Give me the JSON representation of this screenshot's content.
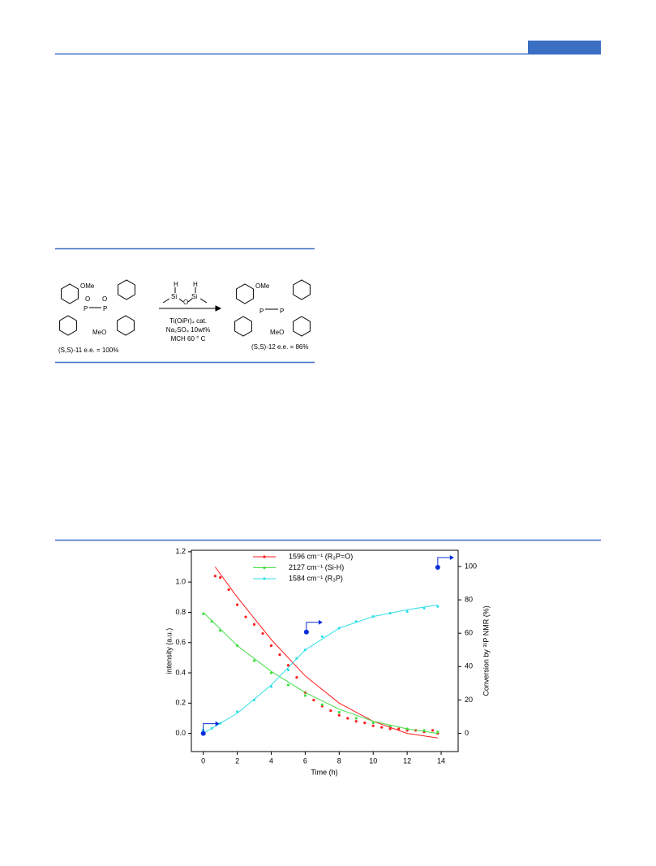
{
  "scheme": {
    "left": {
      "ome": "OMe",
      "o1": "O",
      "o2": "O",
      "p1": "P",
      "p2": "P",
      "meo": "MeO",
      "label": "(S,S)-11  e.e. = 100%"
    },
    "reagent": {
      "h1": "H",
      "h2": "H",
      "si1": "Si",
      "o": "O",
      "si2": "Si"
    },
    "conditions": [
      "Ti(OiPr)₄ cat.",
      "Na₂SO₄ 10wt%",
      "MCH 60 ° C"
    ],
    "right": {
      "ome": "OMe",
      "p1": "P",
      "p2": "P",
      "meo": "MeO",
      "label": "(S,S)-12  e.e. = 86%"
    }
  },
  "chart_data": {
    "type": "scatter",
    "x_label": "Time (h)",
    "y_label": "intensity (a.u.)",
    "y2_label": "Conversion by ³¹P NMR (%)",
    "xlim": [
      -0.7,
      15
    ],
    "xticks": [
      0,
      2,
      4,
      6,
      8,
      10,
      12,
      14
    ],
    "ylim": [
      -0.12,
      1.21
    ],
    "yticks": [
      {
        "value": 0,
        "label": "0.0"
      },
      0.2,
      0.4,
      0.6,
      0.8,
      {
        "value": 1,
        "label": "1.0"
      },
      1.2
    ],
    "y2lim": [
      -10.9,
      109.7
    ],
    "y2ticks": [
      0,
      20,
      40,
      60,
      80,
      100
    ],
    "series": [
      {
        "name": "1596 cm⁻¹ (R₃P=O)",
        "color": "#ff1a1a",
        "x": [
          0.7,
          1,
          1.5,
          2,
          2.5,
          3,
          3.5,
          4,
          4.5,
          5,
          5.5,
          6,
          6.5,
          7,
          7.5,
          8,
          8.5,
          9,
          9.5,
          10,
          10.5,
          11,
          11.5,
          12,
          12.5,
          13,
          13.5,
          13.8
        ],
        "values": [
          1.04,
          1.03,
          0.95,
          0.85,
          0.77,
          0.72,
          0.66,
          0.58,
          0.52,
          0.45,
          0.37,
          0.27,
          0.22,
          0.18,
          0.15,
          0.12,
          0.1,
          0.08,
          0.07,
          0.05,
          0.04,
          0.03,
          0.03,
          0.02,
          0.02,
          0.01,
          0.02,
          0.0
        ],
        "fit_x": [
          0.7,
          2,
          4,
          6,
          8,
          10,
          12,
          13.8
        ],
        "fit": [
          1.1,
          0.9,
          0.62,
          0.38,
          0.2,
          0.08,
          0.0,
          -0.03
        ]
      },
      {
        "name": "2127 cm⁻¹ (Si-H)",
        "color": "#44dd44",
        "x": [
          0,
          0.5,
          1,
          2,
          3,
          4,
          5,
          6,
          7,
          8,
          9,
          10,
          11,
          12,
          13,
          13.8
        ],
        "values": [
          0.79,
          0.74,
          0.68,
          0.58,
          0.48,
          0.4,
          0.32,
          0.25,
          0.19,
          0.14,
          0.1,
          0.07,
          0.05,
          0.03,
          0.02,
          0.01
        ],
        "fit_x": [
          0,
          2,
          4,
          6,
          8,
          10,
          12,
          13.8
        ],
        "fit": [
          0.8,
          0.58,
          0.41,
          0.27,
          0.16,
          0.08,
          0.03,
          0.0
        ]
      },
      {
        "name": "1584 cm⁻¹ (R₃P)",
        "color": "#33e0e8",
        "axis": "y2",
        "x": [
          0,
          0.5,
          1,
          2,
          3,
          4,
          5,
          5.5,
          6,
          7,
          8,
          9,
          10,
          11,
          12,
          13,
          13.8
        ],
        "values": [
          2,
          3,
          6,
          13,
          20,
          28,
          38,
          45,
          50,
          58,
          63,
          67,
          70,
          72,
          73,
          75,
          76
        ],
        "fit_x": [
          0,
          2,
          4,
          6,
          8,
          10,
          12,
          13.8
        ],
        "fit": [
          0,
          12,
          29,
          50,
          63,
          70,
          74,
          77
        ]
      }
    ],
    "nmr_points": {
      "color": "#0a2fd8",
      "axis": "y2",
      "x": [
        0,
        6.07,
        13.8
      ],
      "values": [
        0,
        60.7,
        99.5
      ]
    }
  }
}
